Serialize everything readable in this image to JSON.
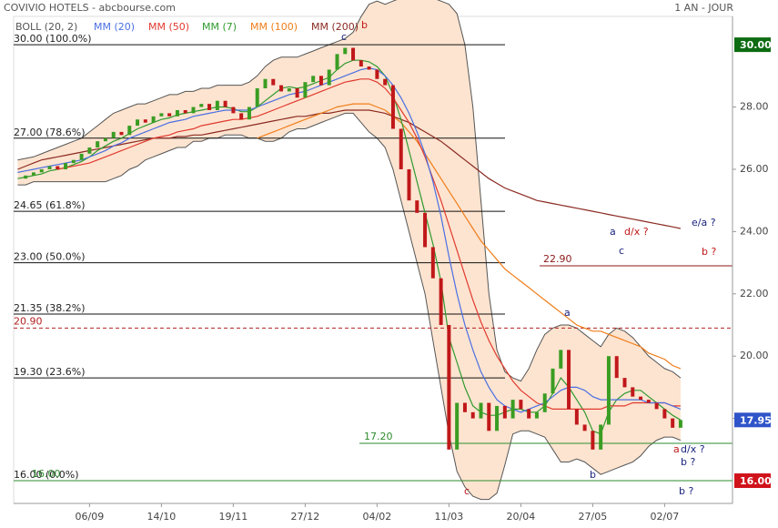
{
  "chart_data": {
    "type": "line",
    "title": "COVIVIO HOTELS - abcbourse.com",
    "period": "1 AN - JOUR",
    "categories": [
      null,
      null,
      null,
      null,
      null,
      null,
      null,
      null,
      null,
      "06/09",
      null,
      null,
      null,
      null,
      null,
      null,
      null,
      null,
      "14/10",
      null,
      null,
      null,
      null,
      null,
      null,
      null,
      null,
      "19/11",
      null,
      null,
      null,
      null,
      null,
      null,
      null,
      null,
      "27/12",
      null,
      null,
      null,
      null,
      null,
      null,
      null,
      null,
      "04/02",
      null,
      null,
      null,
      null,
      null,
      null,
      null,
      null,
      "11/03",
      null,
      null,
      null,
      null,
      null,
      null,
      null,
      null,
      "20/04",
      null,
      null,
      null,
      null,
      null,
      null,
      null,
      null,
      "27/05",
      null,
      null,
      null,
      null,
      null,
      null,
      null,
      null,
      "02/07",
      null,
      null,
      null,
      null,
      null,
      null,
      null,
      null
    ],
    "price": {
      "up_color": "#3a9d23",
      "down_color": "#c0181a",
      "values": [
        25.7,
        25.8,
        25.9,
        26.0,
        26.1,
        26.0,
        26.2,
        26.3,
        26.5,
        26.7,
        26.9,
        27.0,
        27.2,
        27.1,
        27.4,
        27.6,
        27.5,
        27.7,
        27.8,
        27.7,
        27.9,
        27.8,
        28.0,
        28.1,
        27.9,
        28.2,
        28.0,
        27.8,
        27.6,
        28.0,
        28.6,
        28.9,
        28.7,
        28.5,
        28.6,
        28.3,
        28.8,
        29.0,
        28.7,
        29.2,
        29.7,
        29.9,
        29.5,
        29.3,
        29.2,
        28.9,
        28.7,
        27.3,
        26.0,
        25.0,
        24.6,
        23.5,
        22.5,
        21.0,
        17.0,
        18.5,
        18.2,
        18.0,
        18.5,
        17.6,
        18.4,
        18.0,
        18.6,
        18.3,
        18.0,
        18.2,
        18.8,
        19.6,
        20.2,
        18.3,
        17.8,
        17.6,
        17.0,
        17.8,
        20.0,
        19.3,
        19.0,
        18.7,
        18.6,
        18.5,
        18.3,
        18.0,
        17.7,
        17.95,
        null,
        null,
        null,
        null,
        null,
        null
      ]
    },
    "bollinger": {
      "name": "BOLL (20, 2)",
      "color": "#555555",
      "fill": "#fde4d0",
      "upper": [
        26.3,
        26.35,
        26.4,
        26.5,
        26.6,
        26.7,
        26.8,
        26.9,
        27.0,
        27.2,
        27.4,
        27.6,
        27.8,
        27.9,
        28.0,
        28.1,
        28.1,
        28.2,
        28.3,
        28.4,
        28.4,
        28.5,
        28.5,
        28.6,
        28.6,
        28.7,
        28.7,
        28.7,
        28.7,
        28.8,
        29.0,
        29.3,
        29.5,
        29.6,
        29.6,
        29.6,
        29.7,
        29.8,
        29.9,
        30.0,
        30.1,
        30.2,
        30.4,
        30.9,
        31.3,
        31.4,
        31.3,
        31.4,
        31.5,
        31.5,
        31.5,
        31.5,
        31.5,
        31.4,
        31.3,
        31.0,
        30.0,
        28.0,
        25.0,
        22.0,
        20.2,
        19.5,
        19.3,
        19.2,
        19.6,
        20.2,
        20.7,
        20.9,
        21.0,
        21.0,
        20.9,
        20.7,
        20.5,
        20.3,
        20.7,
        20.9,
        20.8,
        20.6,
        20.3,
        20.0,
        19.8,
        19.6,
        19.5,
        19.3,
        null,
        null,
        null,
        null,
        null,
        null
      ],
      "lower": [
        25.5,
        25.5,
        25.6,
        25.6,
        25.6,
        25.6,
        25.6,
        25.6,
        25.6,
        25.6,
        25.6,
        25.6,
        25.7,
        25.8,
        26.0,
        26.1,
        26.3,
        26.4,
        26.5,
        26.6,
        26.7,
        26.7,
        26.9,
        26.9,
        27.0,
        27.0,
        27.1,
        27.1,
        27.1,
        27.0,
        27.0,
        26.9,
        26.9,
        27.0,
        27.2,
        27.3,
        27.3,
        27.4,
        27.5,
        27.6,
        27.7,
        27.8,
        27.8,
        27.5,
        27.2,
        27.0,
        26.7,
        26.0,
        25.0,
        24.0,
        23.0,
        22.0,
        20.5,
        19.0,
        17.5,
        16.3,
        15.8,
        15.5,
        15.4,
        15.4,
        15.6,
        16.5,
        17.5,
        17.6,
        17.6,
        17.5,
        17.4,
        17.0,
        16.6,
        16.6,
        16.7,
        16.6,
        16.4,
        16.2,
        16.3,
        16.4,
        16.5,
        16.6,
        16.8,
        17.1,
        17.3,
        17.4,
        17.4,
        17.3,
        null,
        null,
        null,
        null,
        null,
        null
      ]
    },
    "series": [
      {
        "name": "MM (20)",
        "color": "#4a6fe3",
        "values": [
          25.9,
          25.95,
          26.0,
          26.05,
          26.1,
          26.15,
          26.2,
          26.25,
          26.3,
          26.4,
          26.5,
          26.6,
          26.75,
          26.85,
          27.0,
          27.1,
          27.2,
          27.3,
          27.4,
          27.5,
          27.55,
          27.6,
          27.7,
          27.75,
          27.8,
          27.85,
          27.9,
          27.9,
          27.9,
          27.9,
          28.0,
          28.1,
          28.2,
          28.3,
          28.4,
          28.45,
          28.5,
          28.6,
          28.7,
          28.8,
          28.9,
          29.0,
          29.1,
          29.2,
          29.25,
          29.2,
          29.0,
          28.7,
          28.3,
          27.8,
          27.2,
          26.5,
          25.6,
          24.5,
          23.2,
          22.0,
          21.0,
          20.2,
          19.5,
          19.0,
          18.6,
          18.4,
          18.3,
          18.2,
          18.3,
          18.4,
          18.5,
          18.7,
          18.9,
          19.0,
          19.0,
          18.9,
          18.7,
          18.6,
          18.6,
          18.6,
          18.6,
          18.6,
          18.6,
          18.5,
          18.5,
          18.5,
          18.4,
          18.3,
          null,
          null,
          null,
          null,
          null,
          null
        ]
      },
      {
        "name": "MM (50)",
        "color": "#e03a2f",
        "values": [
          null,
          null,
          null,
          null,
          null,
          26.0,
          26.05,
          26.1,
          26.15,
          26.2,
          26.3,
          26.4,
          26.5,
          26.6,
          26.7,
          26.8,
          26.9,
          27.0,
          27.05,
          27.1,
          27.2,
          27.25,
          27.3,
          27.4,
          27.45,
          27.5,
          27.55,
          27.6,
          27.6,
          27.65,
          27.7,
          27.8,
          27.9,
          28.0,
          28.1,
          28.2,
          28.3,
          28.4,
          28.5,
          28.6,
          28.7,
          28.8,
          28.85,
          28.9,
          28.9,
          28.8,
          28.6,
          28.3,
          27.9,
          27.5,
          27.0,
          26.4,
          25.7,
          25.0,
          24.2,
          23.4,
          22.6,
          21.8,
          21.1,
          20.5,
          20.0,
          19.6,
          19.2,
          18.9,
          18.7,
          18.5,
          18.4,
          18.3,
          18.3,
          18.3,
          18.3,
          18.3,
          18.3,
          18.3,
          18.4,
          18.4,
          18.4,
          18.5,
          18.5,
          18.5,
          18.5,
          18.5,
          18.4,
          18.4,
          null,
          null,
          null,
          null,
          null,
          null
        ]
      },
      {
        "name": "MM (7)",
        "color": "#2f9a2f",
        "values": [
          25.7,
          25.75,
          25.8,
          25.85,
          25.95,
          26.0,
          26.05,
          26.15,
          26.25,
          26.4,
          26.6,
          26.75,
          26.9,
          27.0,
          27.15,
          27.3,
          27.4,
          27.5,
          27.6,
          27.65,
          27.75,
          27.8,
          27.85,
          27.9,
          27.95,
          28.0,
          28.0,
          27.95,
          27.85,
          27.85,
          28.0,
          28.2,
          28.4,
          28.6,
          28.65,
          28.6,
          28.65,
          28.75,
          28.85,
          28.95,
          29.2,
          29.4,
          29.5,
          29.5,
          29.45,
          29.3,
          29.0,
          28.4,
          27.6,
          26.6,
          25.6,
          24.6,
          23.6,
          22.4,
          20.6,
          19.8,
          19.0,
          18.4,
          18.2,
          18.1,
          18.1,
          18.2,
          18.3,
          18.3,
          18.2,
          18.2,
          18.4,
          18.8,
          19.3,
          19.0,
          18.6,
          18.2,
          17.6,
          17.5,
          18.2,
          18.6,
          18.8,
          18.9,
          18.9,
          18.7,
          18.5,
          18.3,
          18.1,
          17.95,
          null,
          null,
          null,
          null,
          null,
          null
        ]
      },
      {
        "name": "MM (100)",
        "color": "#f07d1a",
        "values": [
          null,
          null,
          null,
          null,
          null,
          null,
          null,
          null,
          null,
          null,
          null,
          null,
          null,
          null,
          null,
          null,
          null,
          null,
          null,
          null,
          null,
          null,
          null,
          null,
          null,
          null,
          null,
          null,
          null,
          null,
          27.0,
          27.1,
          27.2,
          27.3,
          27.4,
          27.5,
          27.6,
          27.7,
          27.8,
          27.9,
          28.0,
          28.05,
          28.1,
          28.1,
          28.1,
          28.0,
          27.9,
          27.7,
          27.5,
          27.2,
          26.9,
          26.5,
          26.1,
          25.7,
          25.3,
          24.9,
          24.5,
          24.1,
          23.7,
          23.4,
          23.1,
          22.8,
          22.6,
          22.4,
          22.2,
          22.0,
          21.8,
          21.6,
          21.4,
          21.2,
          21.0,
          20.9,
          20.8,
          20.8,
          20.7,
          20.6,
          20.5,
          20.4,
          20.3,
          20.1,
          20.0,
          19.9,
          19.7,
          19.6,
          null,
          null,
          null,
          null,
          null,
          null
        ]
      },
      {
        "name": "MM (200)",
        "color": "#8b2a22",
        "values": [
          26.0,
          26.1,
          26.2,
          26.3,
          26.35,
          26.4,
          26.45,
          26.5,
          26.55,
          26.6,
          26.65,
          26.7,
          26.75,
          26.8,
          26.85,
          26.9,
          26.95,
          27.0,
          27.0,
          27.0,
          27.05,
          27.05,
          27.1,
          27.1,
          27.15,
          27.2,
          27.25,
          27.3,
          27.35,
          27.4,
          27.45,
          27.5,
          27.55,
          27.6,
          27.65,
          27.7,
          27.7,
          27.75,
          27.8,
          27.8,
          27.85,
          27.9,
          27.9,
          27.9,
          27.9,
          27.85,
          27.8,
          27.7,
          27.6,
          27.5,
          27.35,
          27.2,
          27.05,
          26.9,
          26.7,
          26.5,
          26.3,
          26.1,
          25.9,
          25.7,
          25.55,
          25.4,
          25.3,
          25.2,
          25.1,
          25.0,
          24.95,
          24.9,
          24.85,
          24.8,
          24.75,
          24.7,
          24.65,
          24.6,
          24.55,
          24.5,
          24.45,
          24.4,
          24.35,
          24.3,
          24.25,
          24.2,
          24.15,
          24.1,
          null,
          null,
          null,
          null,
          null,
          null
        ]
      }
    ],
    "ylim": [
      15.27,
      30.91
    ],
    "yticks": [
      {
        "value": 18,
        "label": "18.00"
      },
      {
        "value": 20,
        "label": "20.00"
      },
      {
        "value": 22,
        "label": "22.00"
      },
      {
        "value": 24,
        "label": "24.00"
      },
      {
        "value": 26,
        "label": "26.00"
      },
      {
        "value": 28,
        "label": "28.00"
      }
    ],
    "fib_levels": [
      {
        "value": 30,
        "label": "30.00 (100.0%)"
      },
      {
        "value": 27,
        "label": "27.00 (78.6%)"
      },
      {
        "value": 24.65,
        "label": "24.65 (61.8%)"
      },
      {
        "value": 23,
        "label": "23.00 (50.0%)"
      },
      {
        "value": 21.35,
        "label": "21.35 (38.2%)"
      },
      {
        "value": 19.3,
        "label": "19.30 (23.6%)"
      },
      {
        "value": 16,
        "label": "16.00 (0.0%)"
      }
    ],
    "hlines": [
      {
        "value": 20.9,
        "label": "20.90",
        "color": "#b22222",
        "dashed": true
      },
      {
        "value": 22.9,
        "label": "22.90",
        "color": "#8b1a1a",
        "dashed": false
      },
      {
        "value": 17.2,
        "label": "17.20",
        "color": "#2e8b2e",
        "dashed": false
      },
      {
        "value": 16,
        "label": "16.00",
        "color": "#2e8b2e",
        "dashed": false
      }
    ],
    "price_tags": [
      {
        "value": 30,
        "label": "30.00",
        "color": "#0d6b12"
      },
      {
        "value": 17.95,
        "label": "17.95",
        "color": "#2f54c9"
      },
      {
        "value": 16,
        "label": "16.00",
        "color": "#d0121b"
      }
    ],
    "annotations": [
      {
        "text": "c",
        "color": "#1a237e"
      },
      {
        "text": "b",
        "color": "#c0181a"
      },
      {
        "text": "c",
        "color": "#c0181a"
      },
      {
        "text": "a",
        "color": "#1a237e"
      },
      {
        "text": "a",
        "color": "#1a237e"
      },
      {
        "text": "d/x ?",
        "color": "#c0181a"
      },
      {
        "text": "c",
        "color": "#1a237e"
      },
      {
        "text": "e/a ?",
        "color": "#1a237e"
      },
      {
        "text": "b ?",
        "color": "#c0181a"
      },
      {
        "text": "a",
        "color": "#c0181a"
      },
      {
        "text": "d/x ?",
        "color": "#1a237e"
      },
      {
        "text": "b ?",
        "color": "#1a237e"
      },
      {
        "text": "b",
        "color": "#1a237e"
      },
      {
        "text": "b ?",
        "color": "#1a237e"
      }
    ]
  }
}
